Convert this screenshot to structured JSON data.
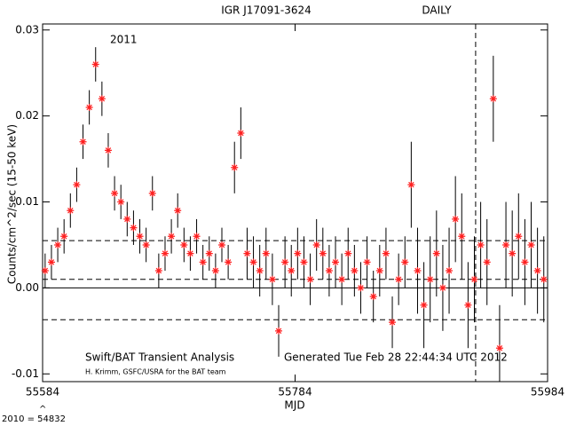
{
  "chart_data": {
    "type": "scatter",
    "title": "IGR J17091-3624",
    "subtitle": "DAILY",
    "annotation_year": "2011",
    "ylabel": "Counts/cm^2/sec (15-50 keV)",
    "xlabel": "MJD",
    "footer_left": "Swift/BAT Transient Analysis",
    "footer_right": "Generated Tue Feb 28 22:44:34 UTC 2012",
    "credit": "H. Krimm, GSFC/USRA for the BAT team",
    "epoch_note": "2010 = 54832",
    "epoch_caret": "^",
    "color": "#ff2020",
    "xlim": [
      55584,
      55984
    ],
    "ylim": [
      -0.0109,
      0.0307
    ],
    "xticks": [
      55584,
      55784,
      55984
    ],
    "yticks": [
      -0.01,
      {
        "value": 0,
        "label": "0.00"
      },
      0.01,
      0.02,
      0.03
    ],
    "reference_lines": [
      {
        "value": 0,
        "style": "solid"
      },
      {
        "value": 0.0055,
        "style": "dashed"
      },
      {
        "value": 0.001,
        "style": "dashed"
      },
      {
        "value": -0.0037,
        "style": "dashed"
      }
    ],
    "vertical_lines": [
      {
        "value": 55927,
        "style": "dashed"
      }
    ],
    "x": [
      55586,
      55591,
      55596,
      55601,
      55606,
      55611,
      55616,
      55621,
      55626,
      55631,
      55636,
      55641,
      55646,
      55651,
      55656,
      55661,
      55666,
      55671,
      55676,
      55681,
      55686,
      55691,
      55696,
      55701,
      55706,
      55711,
      55716,
      55721,
      55726,
      55731,
      55736,
      55741,
      55746,
      55751,
      55756,
      55761,
      55766,
      55771,
      55776,
      55781,
      55786,
      55791,
      55796,
      55801,
      55806,
      55811,
      55816,
      55821,
      55826,
      55831,
      55836,
      55841,
      55846,
      55851,
      55856,
      55861,
      55866,
      55871,
      55876,
      55881,
      55886,
      55891,
      55896,
      55901,
      55906,
      55911,
      55916,
      55921,
      55926,
      55931,
      55936,
      55941,
      55946,
      55951,
      55956,
      55961,
      55966,
      55971,
      55976,
      55981
    ],
    "values": [
      0.002,
      0.003,
      0.005,
      0.006,
      0.009,
      0.012,
      0.017,
      0.021,
      0.026,
      0.022,
      0.016,
      0.011,
      0.01,
      0.008,
      0.007,
      0.006,
      0.005,
      0.011,
      0.002,
      0.004,
      0.006,
      0.009,
      0.005,
      0.004,
      0.006,
      0.003,
      0.004,
      0.002,
      0.005,
      0.003,
      0.014,
      0.018,
      0.004,
      0.003,
      0.002,
      0.004,
      0.001,
      -0.005,
      0.003,
      0.002,
      0.004,
      0.003,
      0.001,
      0.005,
      0.004,
      0.002,
      0.003,
      0.001,
      0.004,
      0.002,
      0,
      0.003,
      -0.001,
      0.002,
      0.004,
      -0.004,
      0.001,
      0.003,
      0.012,
      0.002,
      -0.002,
      0.001,
      0.004,
      0,
      0.002,
      0.008,
      0.006,
      -0.002,
      0.001,
      0.005,
      0.003,
      0.022,
      -0.007,
      0.005,
      0.004,
      0.006,
      0.003,
      0.005,
      0.002,
      0.001
    ],
    "errors": [
      0.002,
      0.002,
      0.002,
      0.002,
      0.002,
      0.002,
      0.002,
      0.002,
      0.002,
      0.002,
      0.002,
      0.002,
      0.002,
      0.002,
      0.002,
      0.002,
      0.002,
      0.002,
      0.002,
      0.002,
      0.002,
      0.002,
      0.002,
      0.002,
      0.002,
      0.002,
      0.002,
      0.002,
      0.002,
      0.002,
      0.003,
      0.003,
      0.003,
      0.003,
      0.003,
      0.003,
      0.003,
      0.003,
      0.003,
      0.003,
      0.003,
      0.003,
      0.003,
      0.003,
      0.003,
      0.003,
      0.003,
      0.003,
      0.003,
      0.003,
      0.003,
      0.003,
      0.003,
      0.003,
      0.003,
      0.003,
      0.003,
      0.003,
      0.005,
      0.005,
      0.005,
      0.005,
      0.005,
      0.005,
      0.005,
      0.005,
      0.005,
      0.005,
      0.005,
      0.005,
      0.005,
      0.005,
      0.005,
      0.005,
      0.005,
      0.005,
      0.005,
      0.005,
      0.005,
      0.005
    ]
  }
}
